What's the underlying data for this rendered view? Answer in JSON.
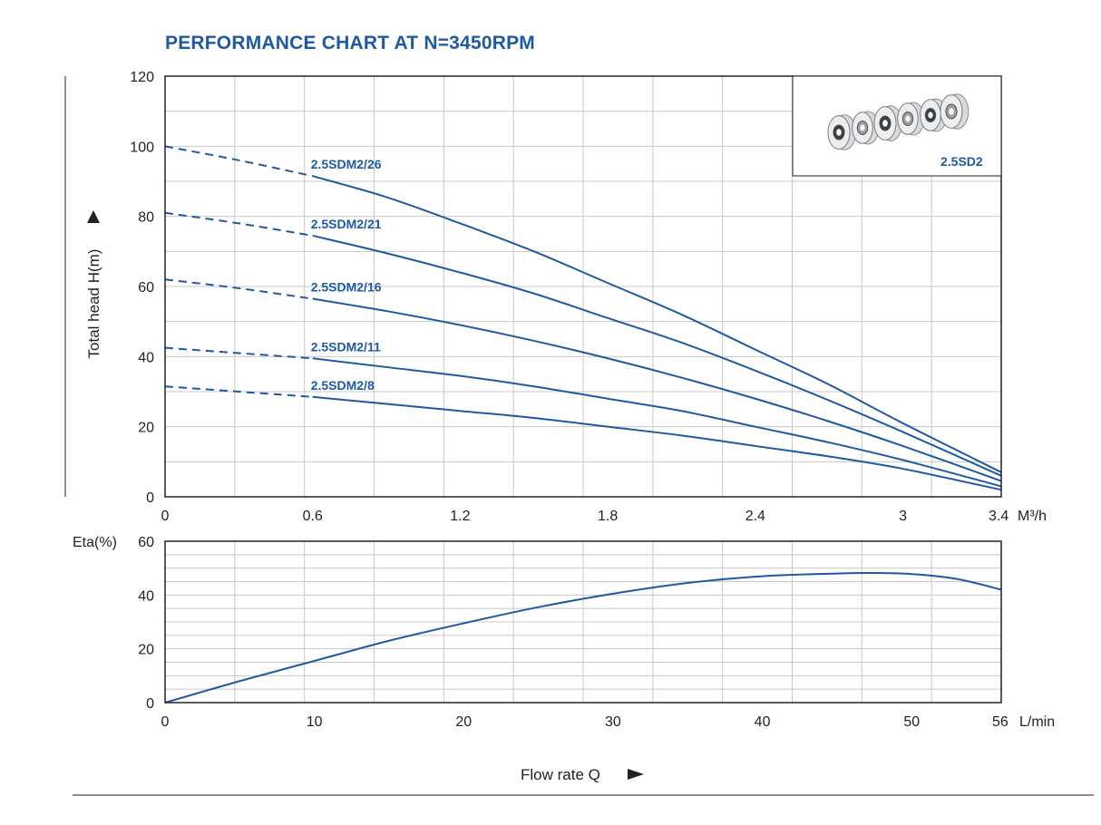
{
  "title": "PERFORMANCE CHART AT N=3450RPM",
  "colors": {
    "curve": "#1d5aa3",
    "grid": "#c8c8c8",
    "axis": "#222222"
  },
  "chart_data": [
    {
      "type": "line",
      "title": "PERFORMANCE CHART AT N=3450RPM",
      "xlabel": "M³/h",
      "ylabel": "Total head H(m)",
      "xlim": [
        0,
        3.4
      ],
      "ylim": [
        0,
        120
      ],
      "x_ticks": [
        "0",
        "0.6",
        "1.2",
        "1.8",
        "2.4",
        "3",
        "3.4"
      ],
      "y_ticks": [
        "0",
        "20",
        "40",
        "60",
        "80",
        "100",
        "120"
      ],
      "grid": true,
      "dashed_segment_x": [
        0,
        0.6
      ],
      "series": [
        {
          "name": "2.5SDM2/26",
          "x": [
            0,
            0.3,
            0.6,
            0.9,
            1.2,
            1.5,
            1.8,
            2.1,
            2.4,
            2.7,
            3.0,
            3.4
          ],
          "y": [
            100,
            96,
            91.5,
            85.5,
            78,
            70,
            61,
            52,
            42,
            32,
            21,
            7
          ]
        },
        {
          "name": "2.5SDM2/21",
          "x": [
            0,
            0.3,
            0.6,
            0.9,
            1.2,
            1.5,
            1.8,
            2.1,
            2.4,
            2.7,
            3.0,
            3.4
          ],
          "y": [
            81,
            78,
            74.5,
            69.5,
            64,
            58,
            51,
            44,
            36,
            27.5,
            18.5,
            6
          ]
        },
        {
          "name": "2.5SDM2/16",
          "x": [
            0,
            0.3,
            0.6,
            0.9,
            1.2,
            1.5,
            1.8,
            2.1,
            2.4,
            2.7,
            3.0,
            3.4
          ],
          "y": [
            62,
            59.5,
            56.5,
            53,
            49,
            44.5,
            39.5,
            34,
            28,
            21.5,
            14.5,
            4.5
          ]
        },
        {
          "name": "2.5SDM2/11",
          "x": [
            0,
            0.3,
            0.6,
            0.9,
            1.2,
            1.5,
            1.8,
            2.1,
            2.4,
            2.7,
            3.0,
            3.4
          ],
          "y": [
            42.5,
            41,
            39.5,
            37,
            34.5,
            31.5,
            28,
            24.5,
            20,
            15.5,
            10.5,
            3
          ]
        },
        {
          "name": "2.5SDM2/8",
          "x": [
            0,
            0.3,
            0.6,
            0.9,
            1.2,
            1.5,
            1.8,
            2.1,
            2.4,
            2.7,
            3.0,
            3.4
          ],
          "y": [
            31.5,
            30,
            28.5,
            26.5,
            24.5,
            22.5,
            20,
            17.5,
            14.5,
            11.5,
            8,
            2
          ]
        }
      ],
      "inset_label": "2.5SD2"
    },
    {
      "type": "line",
      "ylabel": "Eta(%)",
      "xlabel": "L/min",
      "xlim": [
        0,
        56
      ],
      "ylim": [
        0,
        60
      ],
      "x_ticks": [
        "0",
        "10",
        "20",
        "30",
        "40",
        "50",
        "56"
      ],
      "y_ticks": [
        "0",
        "20",
        "40",
        "60"
      ],
      "grid": true,
      "series": [
        {
          "x": [
            0,
            5,
            10,
            15,
            20,
            25,
            30,
            35,
            40,
            45,
            47,
            50,
            53,
            56
          ],
          "y": [
            0,
            8,
            15.5,
            23,
            29.5,
            35.5,
            40.5,
            44.5,
            47,
            48,
            48.2,
            47.8,
            46,
            42
          ]
        }
      ]
    }
  ],
  "bottom_axis_label": "Flow rate Q"
}
